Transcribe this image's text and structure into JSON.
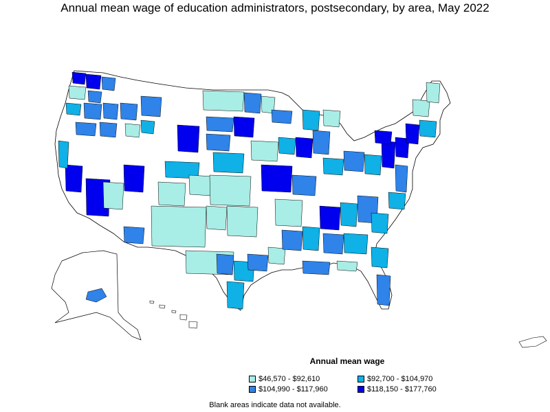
{
  "title": "Annual mean wage of education administrators, postsecondary, by area, May 2022",
  "legend": {
    "title": "Annual mean wage",
    "items": [
      {
        "label": "$46,570 - $92,610",
        "color": "#a8ede6"
      },
      {
        "label": "$92,700 - $104,970",
        "color": "#0fb1e6"
      },
      {
        "label": "$104,990 - $117,960",
        "color": "#2f83e9"
      },
      {
        "label": "$118,150 - $177,760",
        "color": "#0000ee"
      }
    ]
  },
  "note": "Blank areas indicate data not available.",
  "colors": {
    "blank": "#ffffff",
    "border": "#000000"
  }
}
